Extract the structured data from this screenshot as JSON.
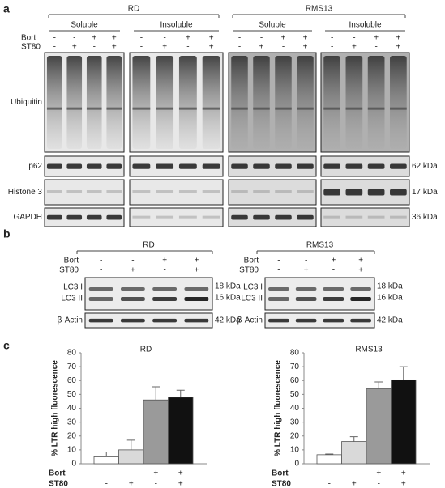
{
  "panel_a": {
    "label": "a",
    "groups": [
      {
        "title": "RD",
        "subs": [
          "Soluble",
          "Insoluble"
        ]
      },
      {
        "title": "RMS13",
        "subs": [
          "Soluble",
          "Insoluble"
        ]
      }
    ],
    "conditions": [
      {
        "name": "Bort",
        "signs": [
          "-",
          "-",
          "+",
          "+"
        ]
      },
      {
        "name": "ST80",
        "signs": [
          "-",
          "+",
          "-",
          "+"
        ]
      }
    ],
    "rows": [
      "Ubiquitin",
      "p62",
      "Histone 3",
      "GAPDH"
    ],
    "sizes": [
      "62 kDa",
      "17 kDa",
      "36 kDa"
    ]
  },
  "panel_b": {
    "label": "b",
    "groups": [
      "RD",
      "RMS13"
    ],
    "conditions": [
      {
        "name": "Bort",
        "signs": [
          "-",
          "-",
          "+",
          "+"
        ]
      },
      {
        "name": "ST80",
        "signs": [
          "-",
          "+",
          "-",
          "+"
        ]
      }
    ],
    "rows": [
      "LC3 I",
      "LC3 II",
      "β-Actin"
    ],
    "sizes": [
      "18 kDa",
      "16 kDa",
      "42 kDa"
    ]
  },
  "panel_c": {
    "label": "c",
    "conditions": [
      {
        "name": "Bort",
        "signs": [
          "-",
          "-",
          "+",
          "+"
        ]
      },
      {
        "name": "ST80",
        "signs": [
          "-",
          "+",
          "-",
          "+"
        ]
      }
    ]
  },
  "chart_data": [
    {
      "type": "bar",
      "title": "RD",
      "y_label": "% LTR high fluorescence",
      "categories": [
        null,
        null,
        null,
        null
      ],
      "values": [
        5,
        10,
        46,
        48
      ],
      "errors": [
        3.5,
        7,
        9.5,
        5
      ],
      "colors": [
        "#ffffff",
        "#d9d9d9",
        "#9a9a9a",
        "#111111"
      ],
      "ylim": [
        0,
        80
      ],
      "yticks": [
        0,
        10,
        20,
        30,
        40,
        50,
        60,
        70,
        80
      ]
    },
    {
      "type": "bar",
      "title": "RMS13",
      "y_label": "% LTR high fluorescence",
      "categories": [
        null,
        null,
        null,
        null
      ],
      "values": [
        6.5,
        16,
        54,
        60.5
      ],
      "errors": [
        0.5,
        3.5,
        5,
        9.5
      ],
      "colors": [
        "#ffffff",
        "#d9d9d9",
        "#9a9a9a",
        "#111111"
      ],
      "ylim": [
        0,
        80
      ],
      "yticks": [
        0,
        10,
        20,
        30,
        40,
        50,
        60,
        70,
        80
      ]
    }
  ]
}
